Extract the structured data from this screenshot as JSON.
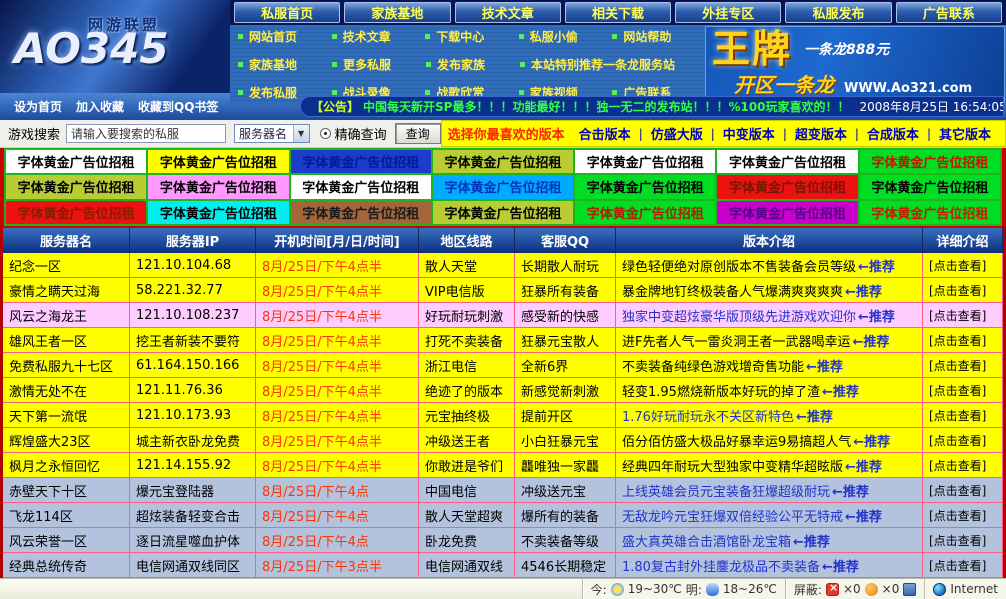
{
  "header": {
    "logo": {
      "title": "AO345",
      "subtitle": "网游联盟"
    },
    "tabs": [
      "私服首页",
      "家族基地",
      "技术文章",
      "相关下载",
      "外挂专区",
      "私服发布",
      "广告联系"
    ],
    "links_row1": [
      "网站首页",
      "技术文章",
      "下载中心",
      "私服小偷",
      "网站帮助"
    ],
    "links_row2": [
      "家族基地",
      "更多私服",
      "发布家族",
      "本站特别推荐一条龙服务站"
    ],
    "links_row3": [
      "发布私服",
      "战斗录像",
      "战歌欣赏",
      "家族视频",
      "广告联系"
    ],
    "banner": {
      "title": "王牌",
      "price": "一条龙888元",
      "subtitle": "开区一条龙",
      "url": "WWW.Ao321.com"
    }
  },
  "quicklinks": {
    "item1": "设为首页",
    "item2": "加入收藏",
    "item3": "收藏到QQ书签"
  },
  "announcement": {
    "prefix": "【公告】",
    "text": "中国每天新开SP最多！！！功能最好！！！独一无二的发布站！！！%100玩家喜欢的！！",
    "datetime": "2008年8月25日  16:54:05  星期一"
  },
  "search": {
    "label": "游戏搜索",
    "placeholder": "请输入要搜索的私服",
    "select_value": "服务器名",
    "radio_label": "精确查询",
    "button_label": "查询"
  },
  "version_bar": {
    "prompt": "选择你最喜欢的版本",
    "sep": "|",
    "options": [
      "合击版本",
      "仿盛大版",
      "中变版本",
      "超变版本",
      "合成版本",
      "其它版本"
    ]
  },
  "ad_grid": {
    "text": "字体黄金广告位招租",
    "cells": [
      "background:#ffffff;color:#000000",
      "background:#ffff00;color:#000000",
      "background:#1e3ccc;color:#001a99",
      "background:#b8cc33;color:#000000",
      "background:#ffffff;color:#000000",
      "background:#ffffff;color:#000000",
      "background:#00dd22;color:#cc1100",
      "background:#b8cc33;color:#000000",
      "background:#ff99ff;color:#000000",
      "background:#ffffff;color:#000000",
      "background:#00aaff;color:#0033bb",
      "background:#00dd22;color:#000000",
      "background:#ee1111;color:#7a1500",
      "background:#00dd22;color:#000000",
      "background:#ee1111;color:#8b1a00",
      "background:#00eeee;color:#000000",
      "background:#a2663a;color:#1a1a1a",
      "background:#b8cc33;color:#000000",
      "background:#00dd22;color:#aa2200",
      "background:#cc00cc;color:#550088",
      "background:#00dd22;color:#bb2200"
    ]
  },
  "table": {
    "headers": [
      "服务器名",
      "服务器IP",
      "开机时间[月/日/时间]",
      "地区线路",
      "客服QQ",
      "版本介绍",
      "详细介绍"
    ],
    "tag_label": "←推荐",
    "detail_label": "[点击查看]",
    "rows": [
      {
        "name": "纪念一区",
        "ip": "121.10.104.68",
        "time": "8月/25日/下午4点半",
        "line": "散人天堂",
        "qq": "长期散人耐玩",
        "intro": "绿色轻便绝对原创版本不售装备会员等级"
      },
      {
        "name": "豪情之瞒天过海",
        "ip": "58.221.32.77",
        "time": "8月/25日/下午4点半",
        "line": "VIP电信版",
        "qq": "狂暴所有装备",
        "intro": "暴金牌地钉终极装备人气爆满爽爽爽爽"
      },
      {
        "name": "风云之海龙王",
        "ip": "121.10.108.237",
        "time": "8月/25日/下午4点半",
        "line": "好玩耐玩刺激",
        "qq": "感受新的快感",
        "intro": "独家中变超炫豪华版顶级先进游戏欢迎你"
      },
      {
        "name": "雄风王者一区",
        "ip": "挖王者新装不要符",
        "time": "8月/25日/下午4点半",
        "line": "打死不卖装备",
        "qq": "狂暴元宝散人",
        "intro": "进F先者人气一雷炎洞王者一武器喝幸运"
      },
      {
        "name": "免费私服九十七区",
        "ip": "61.164.150.166",
        "time": "8月/25日/下午4点半",
        "line": "浙江电信",
        "qq": "全新6界",
        "intro": "不卖装备纯绿色游戏增奇售功能"
      },
      {
        "name": "激情无处不在",
        "ip": "121.11.76.36",
        "time": "8月/25日/下午4点半",
        "line": "绝迹了的版本",
        "qq": "新感觉新刺激",
        "intro": "轻变1.95燃烧新版本好玩的掉了渣"
      },
      {
        "name": "天下第一流氓",
        "ip": "121.10.173.93",
        "time": "8月/25日/下午4点半",
        "line": "元宝抽终极",
        "qq": "提前开区",
        "intro": "1.76好玩耐玩永不关区新特色"
      },
      {
        "name": "辉煌盛大23区",
        "ip": "城主新衣卧龙免费",
        "time": "8月/25日/下午4点半",
        "line": "冲级送王者",
        "qq": "小白狂暴元宝",
        "intro": "佰分佰仿盛大极品好暴幸运9易搞超人气"
      },
      {
        "name": "枫月之永恒回忆",
        "ip": "121.14.155.92",
        "time": "8月/25日/下午4点半",
        "line": "你敢进是爷们",
        "qq": "龘唯独一家龘",
        "intro": "经典四年耐玩大型独家中变精华超眩版"
      },
      {
        "name": "赤壁天下十区",
        "ip": "爆元宝登陆器",
        "time": "8月/25日/下午4点",
        "line": "中国电信",
        "qq": "冲级送元宝",
        "intro": "上线英雄会员元宝装备狂爆超级耐玩"
      },
      {
        "name": "飞龙114区",
        "ip": "超炫装备轻变合击",
        "time": "8月/25日/下午4点",
        "line": "散人天堂超爽",
        "qq": "爆所有的装备",
        "intro": "无敌龙吟元宝狂爆双倍经验公平无特戒"
      },
      {
        "name": "风云荣誉一区",
        "ip": "逐日流星噬血护体",
        "time": "8月/25日/下午4点",
        "line": "卧龙免费",
        "qq": "不卖装备等级",
        "intro": "盛大真英雄合击酒馆卧龙宝箱"
      },
      {
        "name": "经典总统传奇",
        "ip": "电信网通双线同区",
        "time": "8月/25日/下午3点半",
        "line": "电信网通双线",
        "qq": "4546长期稳定",
        "intro": "1.80复古封外挂鏖龙极品不卖装备"
      }
    ]
  },
  "statusbar": {
    "today_label": "今:",
    "today_temp": "19~30℃",
    "tomorrow_label": "明:",
    "tomorrow_temp": "18~26℃",
    "block_label": "屏蔽:",
    "count1": "×0",
    "count2": "×0",
    "internet_label": "Internet"
  },
  "colors": {
    "accent_yellow": "#ffff00",
    "row_pink": "#ffccff",
    "row_blue": "#b3c3de",
    "header_blue": "#0c2f7f",
    "link_blue": "#0000bb",
    "time_red": "#ff3300",
    "recommend_blue": "#2233cc",
    "border_red": "#cc0000",
    "ann_green": "#33ff44"
  }
}
